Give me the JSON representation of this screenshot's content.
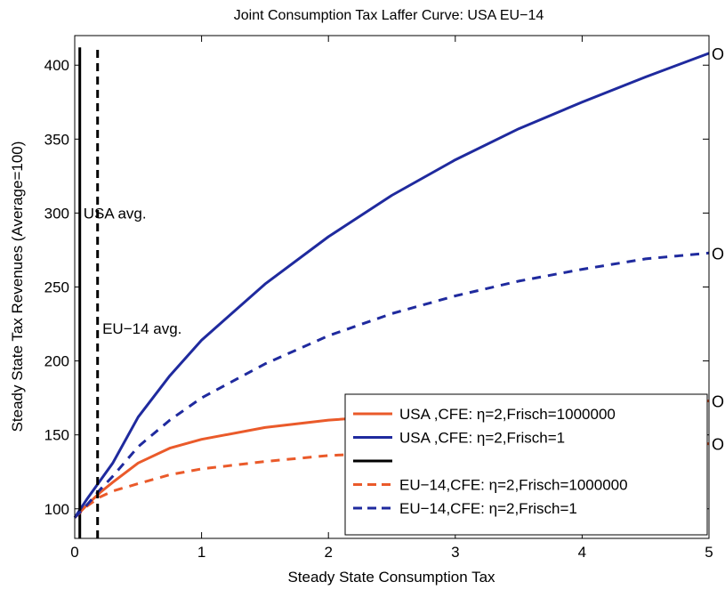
{
  "chart_data": {
    "type": "line",
    "title": "Joint Consumption Tax Laffer Curve: USA  EU−14",
    "xlabel": "Steady State Consumption Tax",
    "ylabel": "Steady State Tax Revenues (Average=100)",
    "xlim": [
      0,
      5
    ],
    "ylim": [
      80,
      420
    ],
    "xticks": [
      0,
      1,
      2,
      3,
      4,
      5
    ],
    "yticks": [
      100,
      150,
      200,
      250,
      300,
      350,
      400
    ],
    "grid": false,
    "legend_position": "bottom-right",
    "series": [
      {
        "name": "USA   ,CFE: η=2,Frisch=1000000",
        "color": "#ea5a2a",
        "dash": "solid",
        "x": [
          0,
          0.1,
          0.2,
          0.3,
          0.5,
          0.75,
          1,
          1.5,
          2,
          2.5,
          3,
          3.5,
          4,
          4.5,
          5
        ],
        "y": [
          94,
          103,
          111,
          118,
          131,
          141,
          147,
          155,
          160,
          163,
          166,
          168,
          170,
          172,
          173
        ]
      },
      {
        "name": "USA   ,CFE: η=2,Frisch=1",
        "color": "#1f2a9e",
        "dash": "solid",
        "x": [
          0,
          0.1,
          0.2,
          0.3,
          0.5,
          0.75,
          1,
          1.5,
          2,
          2.5,
          3,
          3.5,
          4,
          4.5,
          5
        ],
        "y": [
          94,
          107,
          119,
          131,
          162,
          190,
          214,
          252,
          284,
          312,
          336,
          357,
          375,
          392,
          408
        ]
      },
      {
        "name": "",
        "color": "#000000",
        "dash": "solid",
        "vertical": true,
        "x": [
          0.04,
          0.04
        ],
        "y": [
          80,
          412
        ]
      },
      {
        "name": "EU−14,CFE: η=2,Frisch=1000000",
        "color": "#ea5a2a",
        "dash": "dashed",
        "x": [
          0,
          0.1,
          0.2,
          0.3,
          0.5,
          0.75,
          1,
          1.5,
          2,
          2.5,
          3,
          3.5,
          4,
          4.5,
          5
        ],
        "y": [
          94,
          102,
          108,
          112,
          117,
          123,
          127,
          132,
          136,
          138,
          140,
          141,
          142,
          143,
          144
        ]
      },
      {
        "name": "EU−14,CFE: η=2,Frisch=1",
        "color": "#1f2a9e",
        "dash": "dashed",
        "x": [
          0,
          0.1,
          0.2,
          0.3,
          0.5,
          0.75,
          1,
          1.5,
          2,
          2.5,
          3,
          3.5,
          4,
          4.5,
          5
        ],
        "y": [
          94,
          103,
          113,
          122,
          142,
          160,
          175,
          198,
          217,
          232,
          244,
          254,
          262,
          269,
          273
        ]
      },
      {
        "name": "",
        "color": "#000000",
        "dash": "dashed",
        "vertical": true,
        "x": [
          0.18,
          0.18
        ],
        "y": [
          80,
          412
        ]
      }
    ],
    "annotations": [
      {
        "text": "USA   avg.",
        "x": 0.04,
        "y": 300
      },
      {
        "text": "EU−14 avg.",
        "x": 0.19,
        "y": 222
      }
    ],
    "end_markers": [
      {
        "text": "O",
        "x": 5,
        "y": 408
      },
      {
        "text": "O",
        "x": 5,
        "y": 273
      },
      {
        "text": "O",
        "x": 5,
        "y": 173
      },
      {
        "text": "O",
        "x": 5,
        "y": 144
      }
    ],
    "legend_order": [
      0,
      1,
      2,
      3,
      4
    ]
  }
}
